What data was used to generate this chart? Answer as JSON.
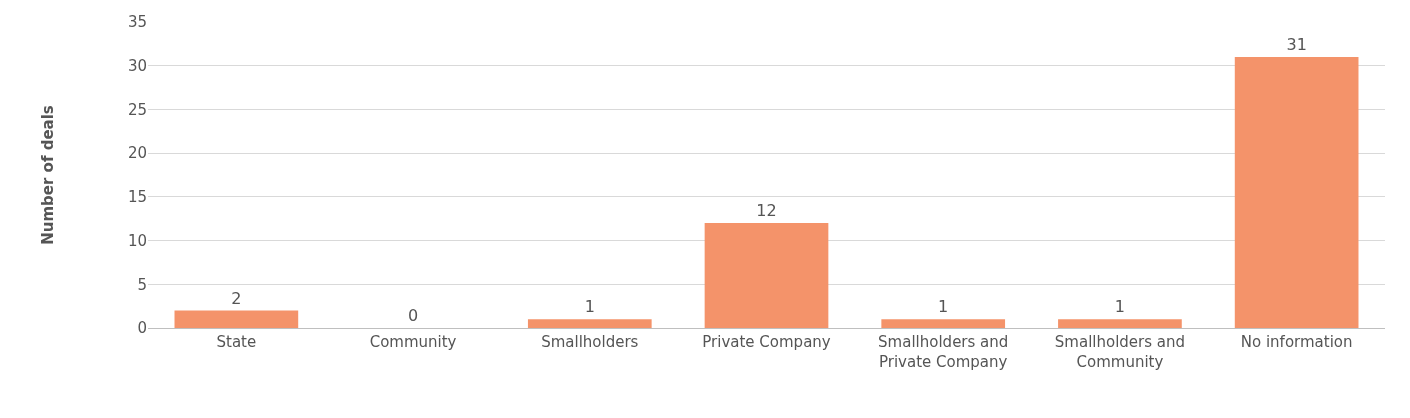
{
  "chart_data": {
    "type": "bar",
    "ylabel": "Number of deals",
    "categories": [
      "State",
      "Community",
      "Smallholders",
      "Private Company",
      "Smallholders and Private Company",
      "Smallholders and Community",
      "No information"
    ],
    "values": [
      2,
      0,
      1,
      12,
      1,
      1,
      31
    ],
    "color": "#f4936a",
    "ylim": [
      0,
      35
    ],
    "yticks": [
      0,
      5,
      10,
      15,
      20,
      25,
      30,
      35
    ],
    "grid": "y",
    "data_labels": true
  }
}
